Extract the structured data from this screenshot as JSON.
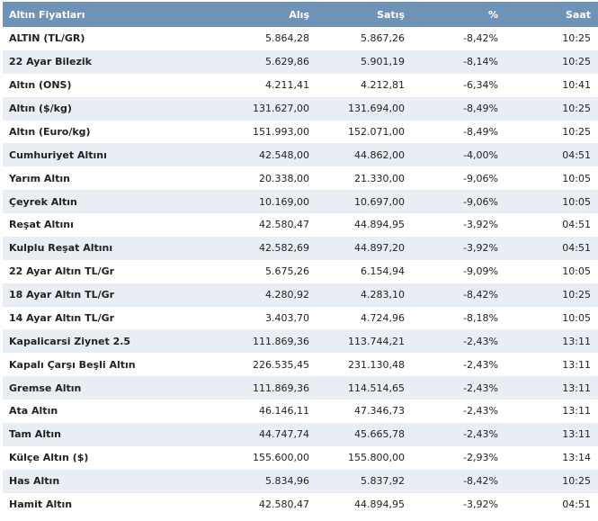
{
  "table": {
    "headers": {
      "name": "Altın Fiyatları",
      "alis": "Alış",
      "satis": "Satış",
      "pct": "%",
      "time": "Saat"
    },
    "rows": [
      {
        "name": "ALTIN (TL/GR)",
        "alis": "5.864,28",
        "satis": "5.867,26",
        "pct": "-8,42%",
        "time": "10:25"
      },
      {
        "name": "22 Ayar Bilezik",
        "alis": "5.629,86",
        "satis": "5.901,19",
        "pct": "-8,14%",
        "time": "10:25"
      },
      {
        "name": "Altın (ONS)",
        "alis": "4.211,41",
        "satis": "4.212,81",
        "pct": "-6,34%",
        "time": "10:41"
      },
      {
        "name": "Altın ($/kg)",
        "alis": "131.627,00",
        "satis": "131.694,00",
        "pct": "-8,49%",
        "time": "10:25"
      },
      {
        "name": "Altın (Euro/kg)",
        "alis": "151.993,00",
        "satis": "152.071,00",
        "pct": "-8,49%",
        "time": "10:25"
      },
      {
        "name": "Cumhuriyet Altını",
        "alis": "42.548,00",
        "satis": "44.862,00",
        "pct": "-4,00%",
        "time": "04:51"
      },
      {
        "name": "Yarım Altın",
        "alis": "20.338,00",
        "satis": "21.330,00",
        "pct": "-9,06%",
        "time": "10:05"
      },
      {
        "name": "Çeyrek Altın",
        "alis": "10.169,00",
        "satis": "10.697,00",
        "pct": "-9,06%",
        "time": "10:05"
      },
      {
        "name": "Reşat Altını",
        "alis": "42.580,47",
        "satis": "44.894,95",
        "pct": "-3,92%",
        "time": "04:51"
      },
      {
        "name": "Kulplu Reşat Altını",
        "alis": "42.582,69",
        "satis": "44.897,20",
        "pct": "-3,92%",
        "time": "04:51"
      },
      {
        "name": "22 Ayar Altın TL/Gr",
        "alis": "5.675,26",
        "satis": "6.154,94",
        "pct": "-9,09%",
        "time": "10:05"
      },
      {
        "name": "18 Ayar Altın TL/Gr",
        "alis": "4.280,92",
        "satis": "4.283,10",
        "pct": "-8,42%",
        "time": "10:25"
      },
      {
        "name": "14 Ayar Altın TL/Gr",
        "alis": "3.403,70",
        "satis": "4.724,96",
        "pct": "-8,18%",
        "time": "10:05"
      },
      {
        "name": "Kapalicarsi Ziynet 2.5",
        "alis": "111.869,36",
        "satis": "113.744,21",
        "pct": "-2,43%",
        "time": "13:11"
      },
      {
        "name": "Kapalı Çarşı Beşli Altın",
        "alis": "226.535,45",
        "satis": "231.130,48",
        "pct": "-2,43%",
        "time": "13:11"
      },
      {
        "name": "Gremse Altın",
        "alis": "111.869,36",
        "satis": "114.514,65",
        "pct": "-2,43%",
        "time": "13:11"
      },
      {
        "name": "Ata Altın",
        "alis": "46.146,11",
        "satis": "47.346,73",
        "pct": "-2,43%",
        "time": "13:11"
      },
      {
        "name": "Tam Altın",
        "alis": "44.747,74",
        "satis": "45.665,78",
        "pct": "-2,43%",
        "time": "13:11"
      },
      {
        "name": "Külçe Altın ($)",
        "alis": "155.600,00",
        "satis": "155.800,00",
        "pct": "-2,93%",
        "time": "13:14"
      },
      {
        "name": "Has Altın",
        "alis": "5.834,96",
        "satis": "5.837,92",
        "pct": "-8,42%",
        "time": "10:25"
      },
      {
        "name": "Hamit Altın",
        "alis": "42.580,47",
        "satis": "44.894,95",
        "pct": "-3,92%",
        "time": "04:51"
      }
    ]
  },
  "colors": {
    "header_bg": "#6e93b6",
    "stripe_bg": "#e8eef4",
    "text": "#222222"
  }
}
